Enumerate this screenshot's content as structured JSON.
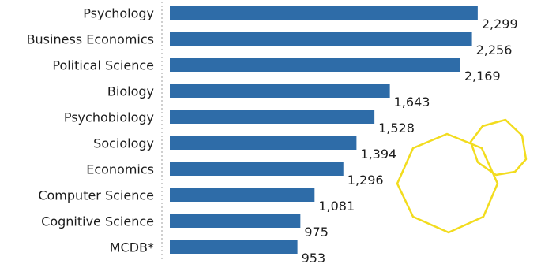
{
  "chart_data": {
    "type": "bar",
    "orientation": "horizontal",
    "categories": [
      "Psychology",
      "Business Economics",
      "Political Science",
      "Biology",
      "Psychobiology",
      "Sociology",
      "Economics",
      "Computer Science",
      "Cognitive Science",
      "MCDB*"
    ],
    "values": [
      2299,
      2256,
      2169,
      1643,
      1528,
      1394,
      1296,
      1081,
      975,
      953
    ],
    "value_labels": [
      "2,299",
      "2,256",
      "2,169",
      "1,643",
      "1,528",
      "1,394",
      "1,296",
      "1,081",
      "975",
      "953"
    ],
    "xlim": [
      0,
      2400
    ],
    "title": "",
    "xlabel": "",
    "ylabel": "",
    "grid": false,
    "legend": "none",
    "colors": {
      "bar": "#2e6ca8",
      "text": "#1c1c1c",
      "axis": "#cfcfcf",
      "decoration": "#f2dc1e"
    }
  },
  "decoration": {
    "icon": "octagon-outline-icon"
  }
}
